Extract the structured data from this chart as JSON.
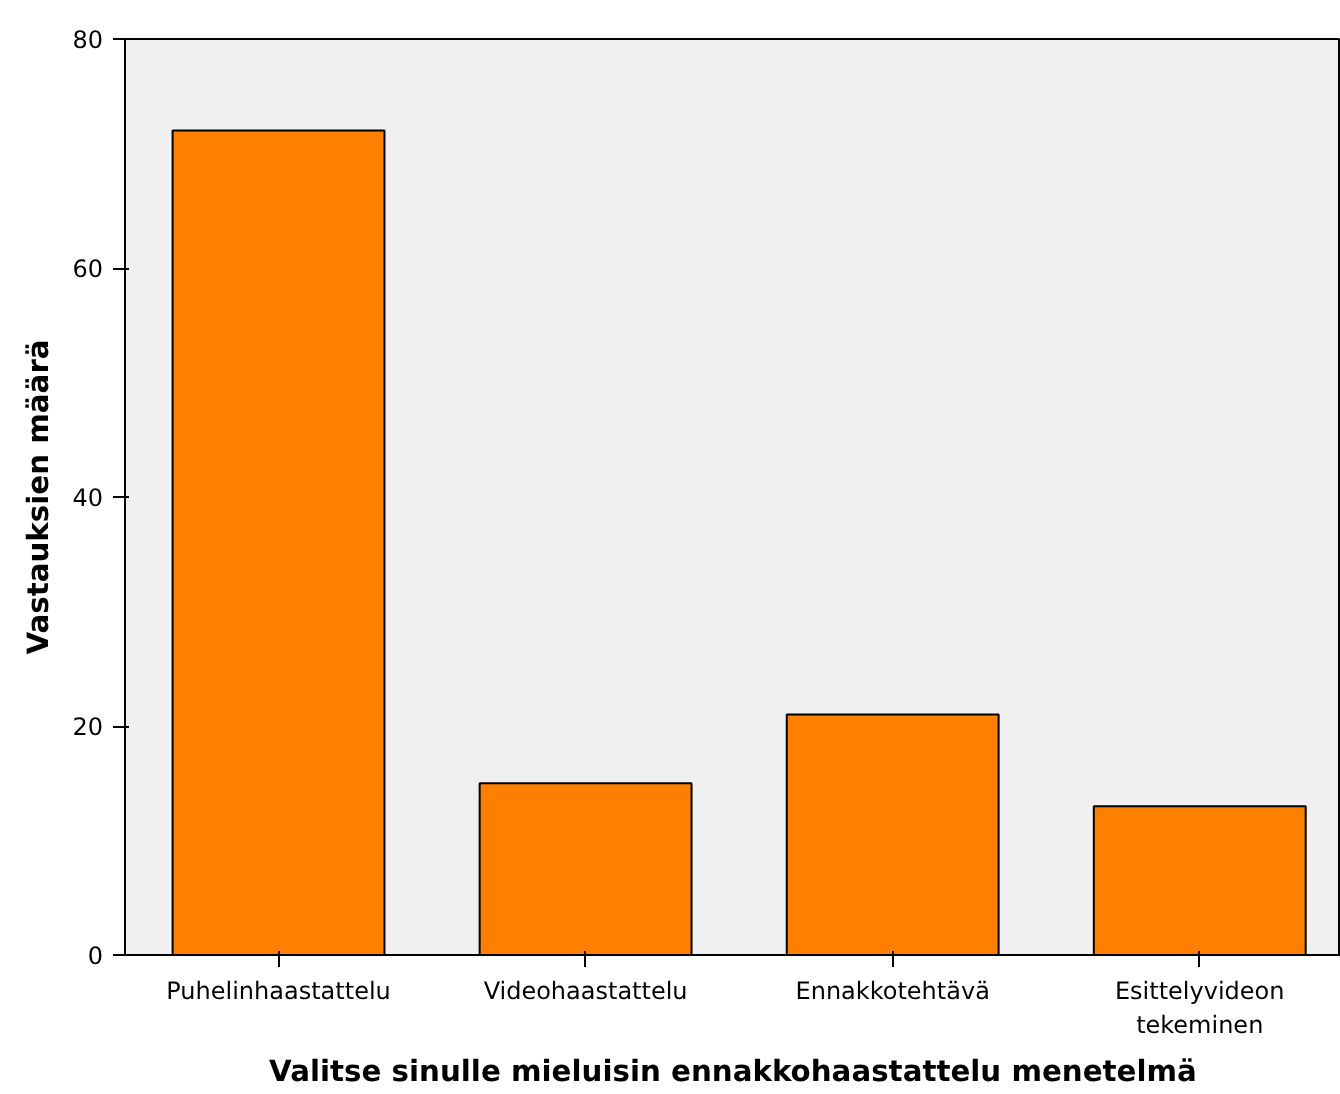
{
  "chart_data": {
    "type": "bar",
    "xlabel": "Valitse sinulle mieluisin ennakkohaastattelu menetelmä",
    "ylabel": "Vastauksien määrä",
    "categories": [
      "Puhelinhaastattelu",
      "Videohaastattelu",
      "Ennakkotehtävä",
      "Esittelyvideon\ntekeminen"
    ],
    "values": [
      72,
      15,
      21,
      13
    ],
    "color": "#ff8000",
    "ylim": [
      0,
      80
    ],
    "yticks": [
      0,
      20,
      40,
      60,
      80
    ],
    "grid": false
  }
}
